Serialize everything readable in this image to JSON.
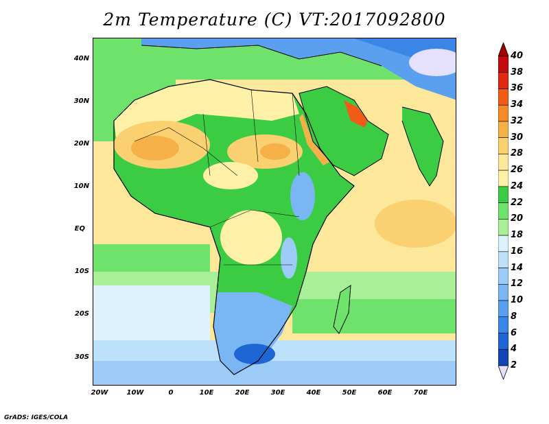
{
  "title": "2m Temperature (C) VT:2017092800",
  "credit": "GrADS: IGES/COLA",
  "lat_labels": [
    "40N",
    "30N",
    "20N",
    "10N",
    "EQ",
    "10S",
    "20S",
    "30S"
  ],
  "lon_labels": [
    "20W",
    "10W",
    "0",
    "10E",
    "20E",
    "30E",
    "40E",
    "50E",
    "60E",
    "70E"
  ],
  "colorbar": {
    "labels": [
      "2",
      "4",
      "6",
      "8",
      "10",
      "12",
      "14",
      "16",
      "18",
      "20",
      "22",
      "24",
      "26",
      "28",
      "30",
      "32",
      "34",
      "36",
      "38",
      "40"
    ],
    "colors": [
      "#0a1f7a",
      "#1244b4",
      "#1d66d4",
      "#3a86e6",
      "#5aa0ee",
      "#7ab6f4",
      "#9ccbf8",
      "#bde0fb",
      "#ddf2fd",
      "#a8ef98",
      "#6ee26a",
      "#3ccc44",
      "#fff0a8",
      "#fde79a",
      "#fbd070",
      "#f6b048",
      "#f58a28",
      "#f05b18",
      "#e02812",
      "#c40a0a"
    ],
    "below_color": "#e6e0ff",
    "above_color": "#a00000"
  }
}
